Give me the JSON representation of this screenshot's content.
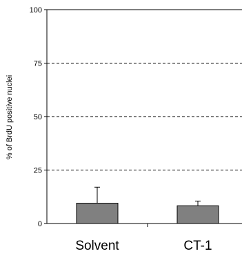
{
  "chart_data": {
    "type": "bar",
    "categories": [
      "Solvent",
      "CT-1"
    ],
    "values": [
      9.5,
      8.3
    ],
    "error_bars": [
      7.5,
      2.2
    ],
    "xlabel": "",
    "ylabel": "% of BrdU positive nuclei",
    "ylim": [
      0,
      100
    ],
    "yticks": [
      0,
      25,
      50,
      75,
      100
    ],
    "ytick_labels": [
      "0",
      "25",
      "50",
      "75",
      "100"
    ],
    "grid": "dashed horizontal at 25, 50, 75",
    "bar_color": "#808080"
  }
}
